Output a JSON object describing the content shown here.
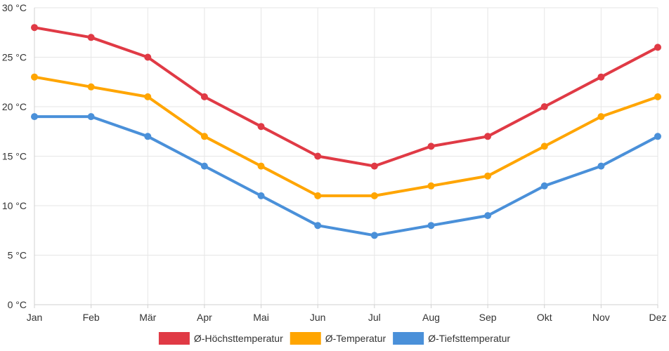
{
  "chart_data": {
    "type": "line",
    "title": "",
    "xlabel": "",
    "ylabel": "",
    "y_unit": "°C",
    "ylim": [
      0,
      30
    ],
    "y_ticks": [
      0,
      5,
      10,
      15,
      20,
      25,
      30
    ],
    "y_tick_labels": [
      "0 °C",
      "5 °C",
      "10 °C",
      "15 °C",
      "20 °C",
      "25 °C",
      "30 °C"
    ],
    "grid": true,
    "legend_position": "bottom-center",
    "categories": [
      "Jan",
      "Feb",
      "Mär",
      "Apr",
      "Mai",
      "Jun",
      "Jul",
      "Aug",
      "Sep",
      "Okt",
      "Nov",
      "Dez"
    ],
    "series": [
      {
        "name": "Ø-Höchsttemperatur",
        "color": "#e03a45",
        "values": [
          28,
          27,
          25,
          21,
          18,
          15,
          14,
          16,
          17,
          20,
          23,
          26
        ]
      },
      {
        "name": "Ø-Temperatur",
        "color": "#ffa500",
        "values": [
          23,
          22,
          21,
          17,
          14,
          11,
          11,
          12,
          13,
          16,
          19,
          21
        ]
      },
      {
        "name": "Ø-Tiefsttemperatur",
        "color": "#4a90d9",
        "values": [
          19,
          19,
          17,
          14,
          11,
          8,
          7,
          8,
          9,
          12,
          14,
          17
        ]
      }
    ]
  }
}
